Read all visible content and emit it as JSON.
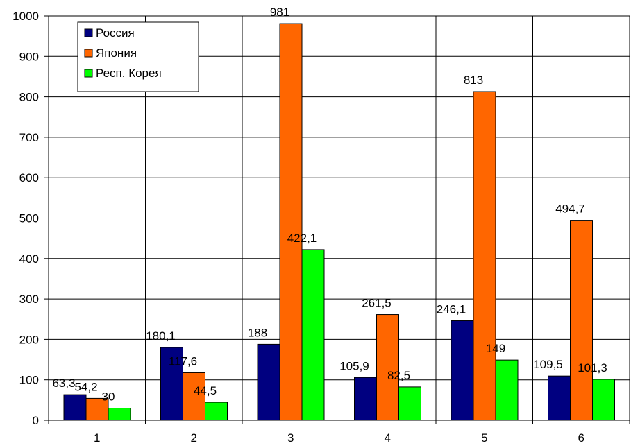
{
  "chart_data": {
    "type": "bar",
    "title": "",
    "xlabel": "",
    "ylabel": "",
    "categories": [
      "1",
      "2",
      "3",
      "4",
      "5",
      "6"
    ],
    "ylim": [
      0,
      1000
    ],
    "yticks": [
      "0",
      "100",
      "200",
      "300",
      "400",
      "500",
      "600",
      "700",
      "800",
      "900",
      "1000"
    ],
    "grid": true,
    "legend_position": "top-left",
    "series": [
      {
        "name": "Россия",
        "color": "#000080",
        "values": [
          63.3,
          180.1,
          188,
          105.9,
          246.1,
          109.5
        ],
        "labels": [
          "63,3",
          "180,1",
          "188",
          "105,9",
          "246,1",
          "109,5"
        ]
      },
      {
        "name": "Япония",
        "color": "#FF6600",
        "values": [
          54.2,
          117.6,
          981,
          261.5,
          813,
          494.7
        ],
        "labels": [
          "54,2",
          "117,6",
          "981",
          "261,5",
          "813",
          "494,7"
        ]
      },
      {
        "name": "Респ. Корея",
        "color": "#00FF00",
        "values": [
          30,
          44.5,
          422.1,
          82.5,
          149,
          101.3
        ],
        "labels": [
          "30",
          "44,5",
          "422,1",
          "82,5",
          "149",
          "101,3"
        ]
      }
    ]
  }
}
